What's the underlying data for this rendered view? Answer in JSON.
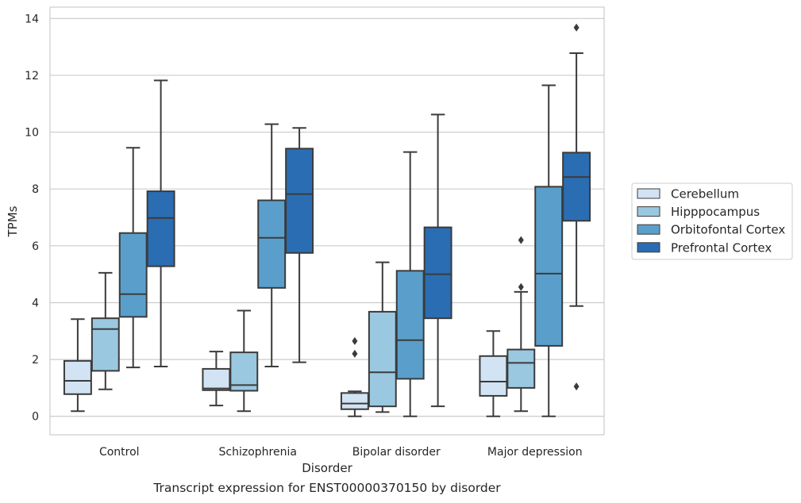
{
  "caption": "Transcript expression for ENST00000370150 by disorder",
  "chart_data": {
    "type": "box",
    "title": "",
    "xlabel": "Disorder",
    "ylabel": "TPMs",
    "ylim": [
      -0.65,
      14.4
    ],
    "yticks": [
      0,
      2,
      4,
      6,
      8,
      10,
      12,
      14
    ],
    "grid": true,
    "legend_position": "right",
    "categories": [
      "Control",
      "Schizophrenia",
      "Bipolar disorder",
      "Major depression"
    ],
    "series": [
      {
        "name": "Cerebellum",
        "color": "#d2e3f3",
        "boxes": [
          {
            "whisker_low": 0.18,
            "q1": 0.78,
            "median": 1.25,
            "q3": 1.95,
            "whisker_high": 3.42,
            "outliers": []
          },
          {
            "whisker_low": 0.38,
            "q1": 0.92,
            "median": 0.98,
            "q3": 1.67,
            "whisker_high": 2.28,
            "outliers": []
          },
          {
            "whisker_low": 0.0,
            "q1": 0.25,
            "median": 0.45,
            "q3": 0.82,
            "whisker_high": 0.88,
            "outliers": [
              2.2,
              2.65
            ]
          },
          {
            "whisker_low": 0.0,
            "q1": 0.72,
            "median": 1.22,
            "q3": 2.12,
            "whisker_high": 3.0,
            "outliers": []
          }
        ]
      },
      {
        "name": "Hipppocampus",
        "color": "#9ac8e0",
        "boxes": [
          {
            "whisker_low": 0.95,
            "q1": 1.6,
            "median": 3.07,
            "q3": 3.45,
            "whisker_high": 5.05,
            "outliers": []
          },
          {
            "whisker_low": 0.18,
            "q1": 0.9,
            "median": 1.1,
            "q3": 2.25,
            "whisker_high": 3.72,
            "outliers": []
          },
          {
            "whisker_low": 0.15,
            "q1": 0.35,
            "median": 1.55,
            "q3": 3.68,
            "whisker_high": 5.42,
            "outliers": []
          },
          {
            "whisker_low": 0.18,
            "q1": 1.0,
            "median": 1.88,
            "q3": 2.35,
            "whisker_high": 4.38,
            "outliers": [
              4.55,
              6.2
            ]
          }
        ]
      },
      {
        "name": "Orbitofontal Cortex",
        "color": "#5a9fcc",
        "boxes": [
          {
            "whisker_low": 1.72,
            "q1": 3.5,
            "median": 4.3,
            "q3": 6.45,
            "whisker_high": 9.45,
            "outliers": []
          },
          {
            "whisker_low": 1.75,
            "q1": 4.52,
            "median": 6.28,
            "q3": 7.6,
            "whisker_high": 10.28,
            "outliers": []
          },
          {
            "whisker_low": 0.0,
            "q1": 1.32,
            "median": 2.68,
            "q3": 5.12,
            "whisker_high": 9.3,
            "outliers": []
          },
          {
            "whisker_low": 0.0,
            "q1": 2.48,
            "median": 5.02,
            "q3": 8.08,
            "whisker_high": 11.65,
            "outliers": []
          }
        ]
      },
      {
        "name": "Prefrontal Cortex",
        "color": "#2a6db3",
        "boxes": [
          {
            "whisker_low": 1.75,
            "q1": 5.28,
            "median": 6.98,
            "q3": 7.92,
            "whisker_high": 11.82,
            "outliers": []
          },
          {
            "whisker_low": 1.9,
            "q1": 5.75,
            "median": 7.82,
            "q3": 9.42,
            "whisker_high": 10.15,
            "outliers": []
          },
          {
            "whisker_low": 0.35,
            "q1": 3.45,
            "median": 5.0,
            "q3": 6.65,
            "whisker_high": 10.62,
            "outliers": []
          },
          {
            "whisker_low": 3.88,
            "q1": 6.88,
            "median": 8.42,
            "q3": 9.28,
            "whisker_high": 12.78,
            "outliers": [
              1.05,
              13.68
            ]
          }
        ]
      }
    ]
  }
}
